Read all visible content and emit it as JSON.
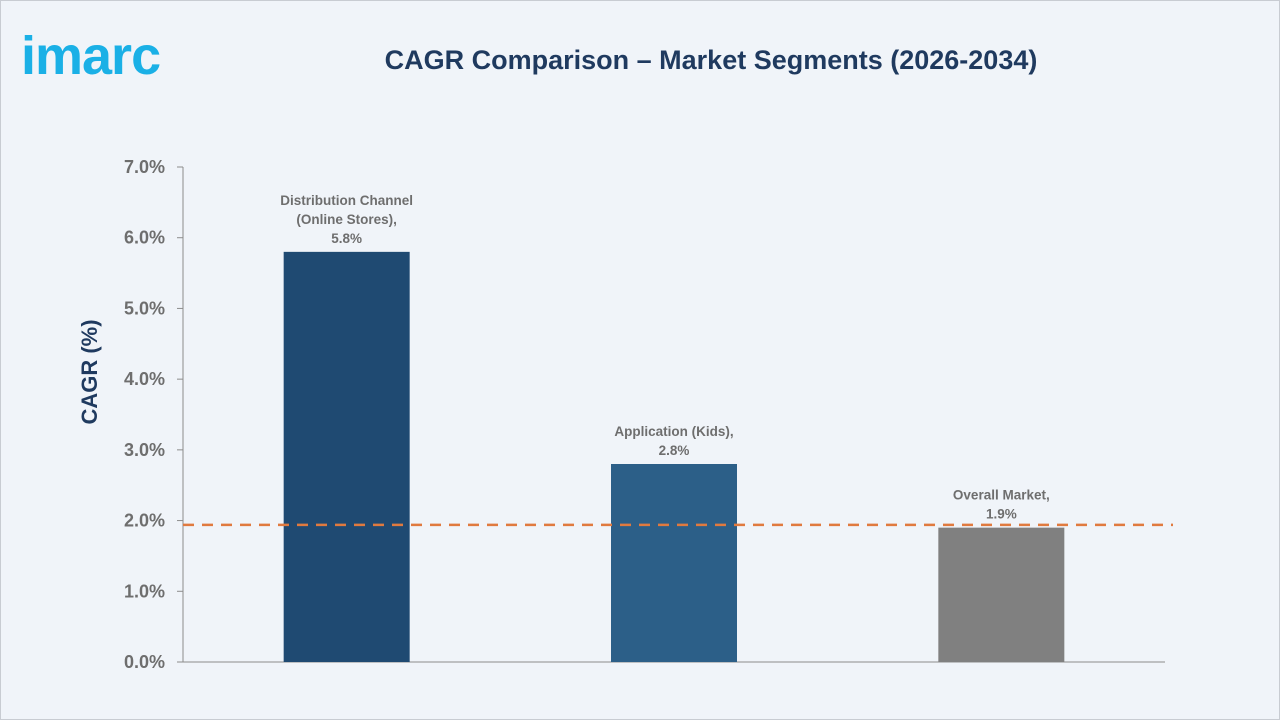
{
  "brand": {
    "logo_text": "imarc",
    "color": "#1ab0e6"
  },
  "colors": {
    "title": "#1f3a5f",
    "bar_primary": "#1f4a72",
    "bar_secondary": "#2c5f88",
    "bar_overall": "#808080",
    "reference_line": "#e07a3f",
    "axis": "#8c8c8c"
  },
  "chart_data": {
    "type": "bar",
    "title": "CAGR Comparison – Market Segments (2026-2034)",
    "ylabel": "CAGR (%)",
    "xlabel": "",
    "ylim": [
      0,
      7
    ],
    "yticks": [
      "0.0%",
      "1.0%",
      "2.0%",
      "3.0%",
      "4.0%",
      "5.0%",
      "6.0%",
      "7.0%"
    ],
    "grid": false,
    "categories": [
      "Distribution Channel (Online Stores)",
      "Application (Kids)",
      "Overall Market"
    ],
    "values": [
      5.8,
      2.8,
      1.9
    ],
    "data_labels": [
      [
        "Distribution Channel",
        "(Online Stores),",
        "5.8%"
      ],
      [
        "Application (Kids),",
        "2.8%"
      ],
      [
        "Overall Market,",
        "1.9%"
      ]
    ],
    "reference_line": {
      "value": 1.94,
      "style": "dashed"
    }
  }
}
